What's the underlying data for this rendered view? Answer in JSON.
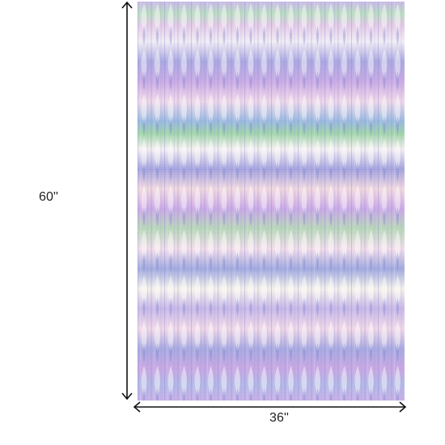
{
  "dimensions": {
    "height": "60''",
    "width": "36''"
  }
}
